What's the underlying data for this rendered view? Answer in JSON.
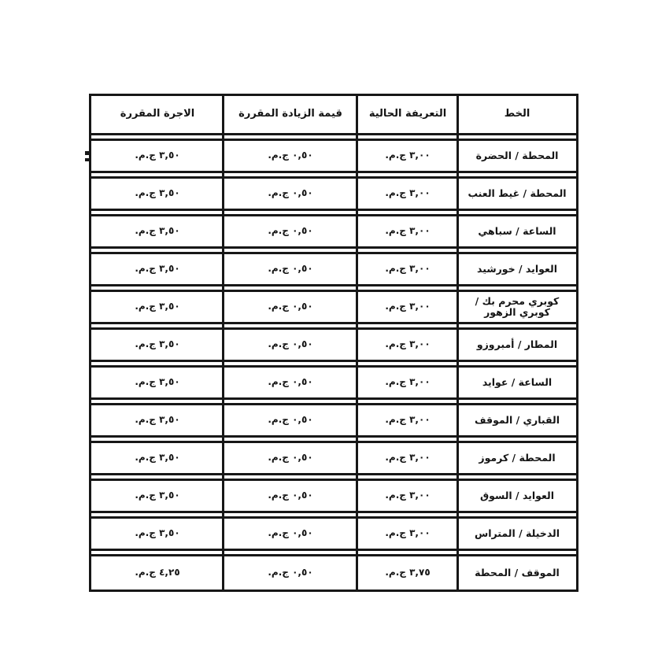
{
  "page": {
    "kind": "scanned-fare-table",
    "background_color": "#ffffff",
    "ink_color": "#171717",
    "currency_unit": "ج.م."
  },
  "table": {
    "columns": [
      {
        "key": "line",
        "label": "الخط"
      },
      {
        "key": "current",
        "label": "التعريفة الحالية"
      },
      {
        "key": "increase",
        "label": "قيمة الزيادة المقررة"
      },
      {
        "key": "fare",
        "label": "الاجرة المقررة"
      }
    ],
    "rows": [
      {
        "line": "المحطة / الحضرة",
        "current": "٣,٠٠ ج.م.",
        "increase": "٠,٥٠ ج.م.",
        "fare": "٣,٥٠ ج.م."
      },
      {
        "line": "المحطة / غيط العنب",
        "current": "٣,٠٠ ج.م.",
        "increase": "٠,٥٠ ج.م.",
        "fare": "٣,٥٠ ج.م."
      },
      {
        "line": "الساعة / سباهي",
        "current": "٣,٠٠ ج.م.",
        "increase": "٠,٥٠ ج.م.",
        "fare": "٣,٥٠ ج.م."
      },
      {
        "line": "العوايد / خورشيد",
        "current": "٣,٠٠ ج.م.",
        "increase": "٠,٥٠ ج.م.",
        "fare": "٣,٥٠ ج.م."
      },
      {
        "line": "كوبري محرم بك / كوبري الزهور",
        "current": "٣,٠٠ ج.م.",
        "increase": "٠,٥٠ ج.م.",
        "fare": "٣,٥٠ ج.م."
      },
      {
        "line": "المطار / أمبروزو",
        "current": "٣,٠٠ ج.م.",
        "increase": "٠,٥٠ ج.م.",
        "fare": "٣,٥٠ ج.م."
      },
      {
        "line": "الساعة / عوايد",
        "current": "٣,٠٠ ج.م.",
        "increase": "٠,٥٠ ج.م.",
        "fare": "٣,٥٠ ج.م."
      },
      {
        "line": "القباري / الموقف",
        "current": "٣,٠٠ ج.م.",
        "increase": "٠,٥٠ ج.م.",
        "fare": "٣,٥٠ ج.م."
      },
      {
        "line": "المحطة / كرموز",
        "current": "٣,٠٠ ج.م.",
        "increase": "٠,٥٠ ج.م.",
        "fare": "٣,٥٠ ج.م."
      },
      {
        "line": "العوايد / السوق",
        "current": "٣,٠٠ ج.م.",
        "increase": "٠,٥٠ ج.م.",
        "fare": "٣,٥٠ ج.م."
      },
      {
        "line": "الدخيلة / المتراس",
        "current": "٣,٠٠ ج.م.",
        "increase": "٠,٥٠ ج.م.",
        "fare": "٣,٥٠ ج.م."
      },
      {
        "line": "الموقف / المحطة",
        "current": "٣,٧٥ ج.م.",
        "increase": "٠,٥٠ ج.م.",
        "fare": "٤,٢٥ ج.م."
      }
    ]
  }
}
